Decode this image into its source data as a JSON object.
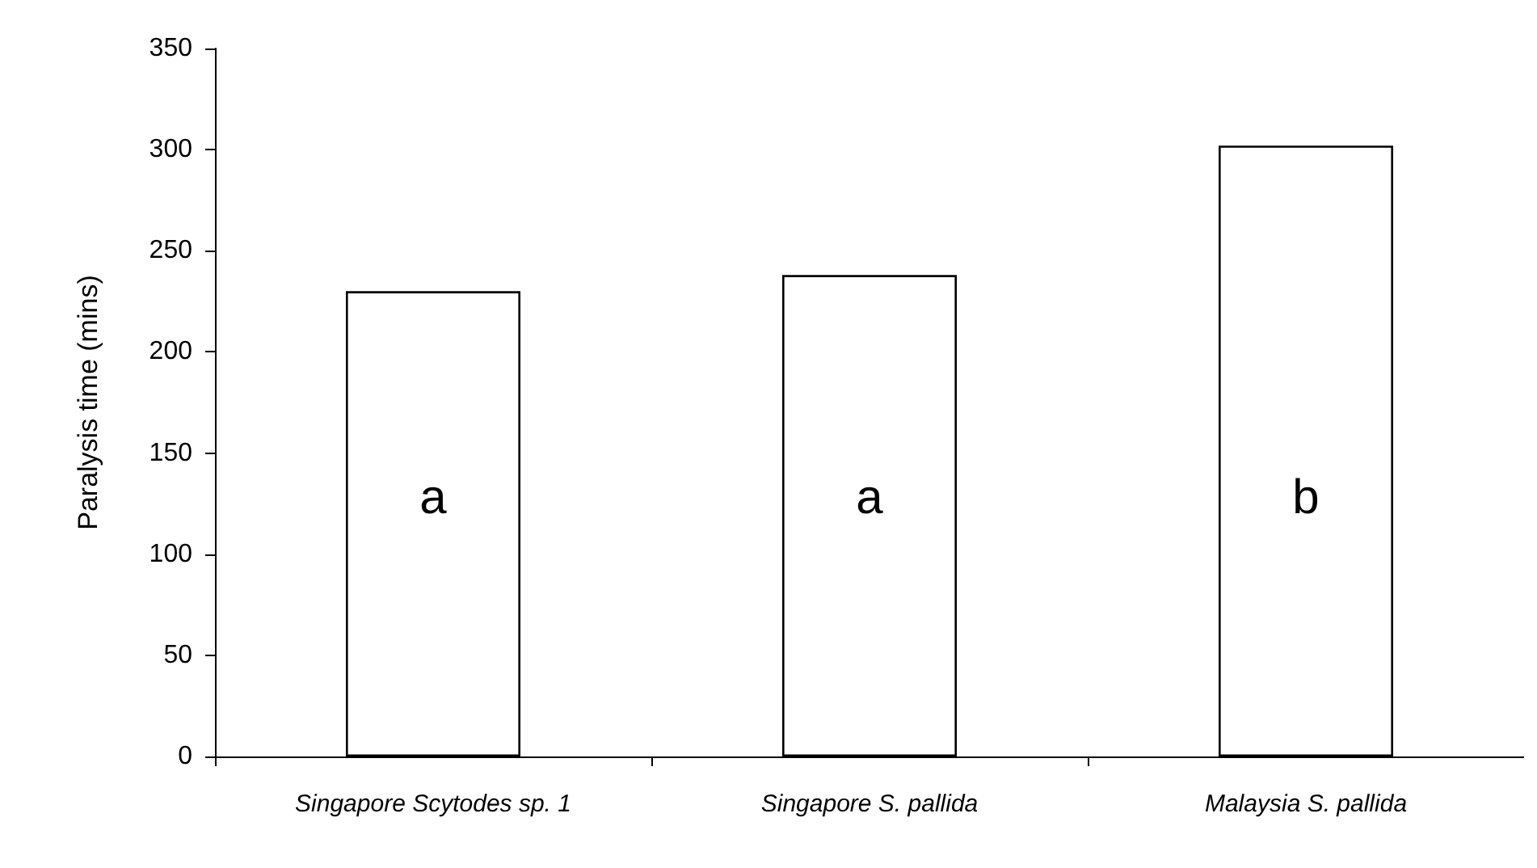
{
  "chart_data": {
    "type": "bar",
    "ylabel": "Paralysis time (mins)",
    "categories": [
      "Singapore Scytodes sp. 1",
      "Singapore S. pallida",
      "Malaysia S. pallida"
    ],
    "values": [
      230,
      238,
      302
    ],
    "color": "#ffffff",
    "ylim": [
      0,
      350
    ],
    "yticks": [
      0,
      50,
      100,
      150,
      200,
      250,
      300,
      350
    ],
    "grid": false,
    "annotations": [
      "a",
      "a",
      "b"
    ]
  }
}
